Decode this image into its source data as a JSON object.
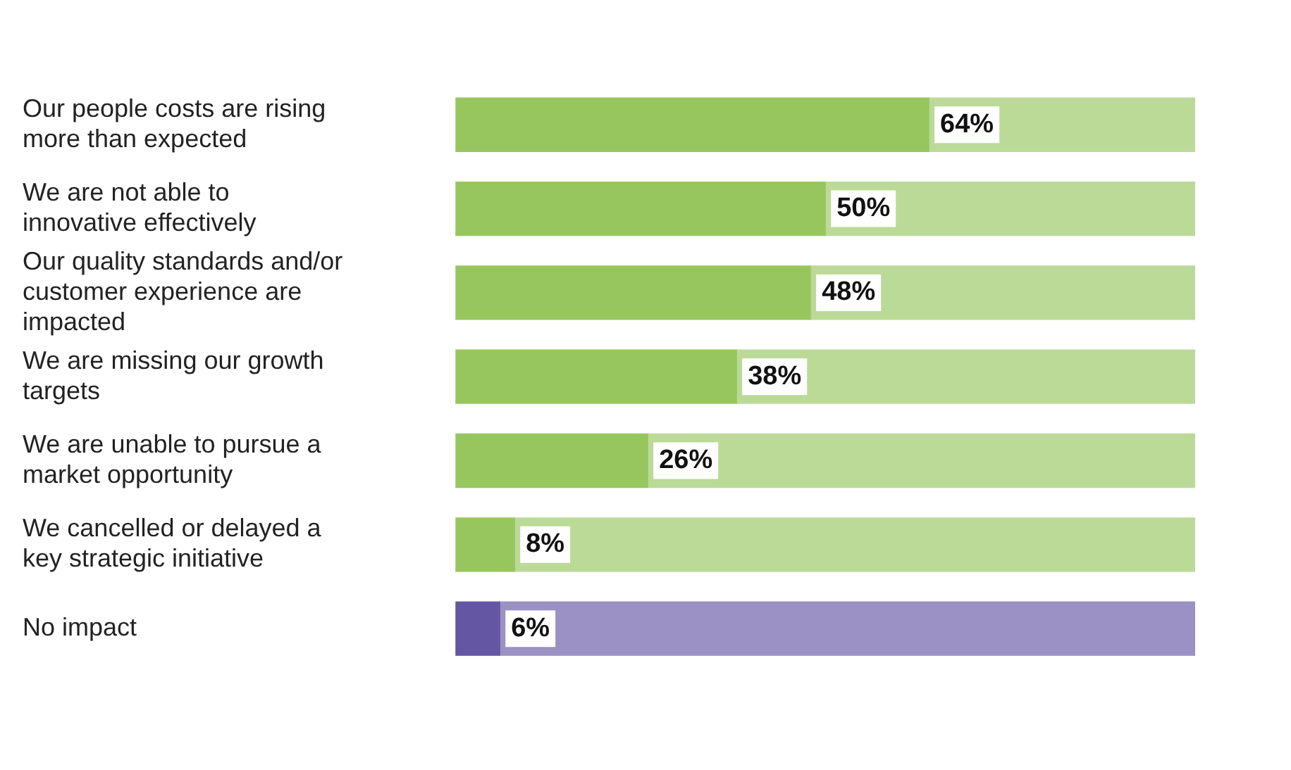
{
  "chart_data": {
    "type": "bar",
    "orientation": "horizontal",
    "stacked": true,
    "categories": [
      "Our people costs are rising more than expected",
      "We are not able to innovative effectively",
      "Our quality standards and/or customer experience are impacted",
      "We are missing our growth targets",
      "We are unable to pursue a market opportunity",
      "We cancelled or delayed a key strategic initiative",
      "No impact"
    ],
    "series": [
      {
        "values": [
          64,
          50,
          48,
          38,
          26,
          8,
          6
        ],
        "value_labels": [
          "64%",
          "50%",
          "48%",
          "38%",
          "26%",
          "8%",
          "6%"
        ],
        "colors": [
          "#97c65f",
          "#97c65f",
          "#97c65f",
          "#97c65f",
          "#97c65f",
          "#97c65f",
          "#6556a4"
        ]
      },
      {
        "values": [
          36,
          50,
          52,
          62,
          74,
          92,
          94
        ],
        "colors": [
          "#bbda97",
          "#bbda97",
          "#bbda97",
          "#bbda97",
          "#bbda97",
          "#bbda97",
          "#9b91c4"
        ]
      }
    ],
    "xlim": [
      0,
      100
    ],
    "tick_labels": "y",
    "legend": false
  }
}
